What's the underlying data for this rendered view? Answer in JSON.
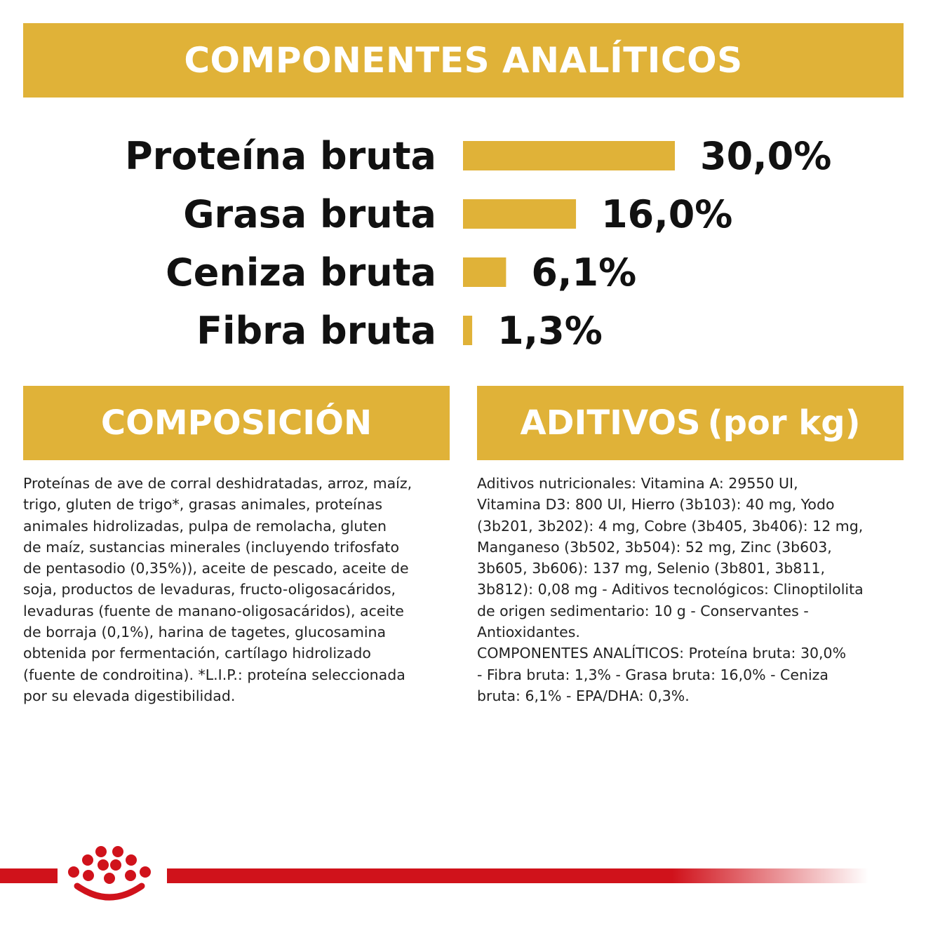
{
  "colors": {
    "accent": "#e0b238",
    "brand_red": "#d0121b",
    "text": "#111111"
  },
  "header": {
    "title": "COMPONENTES ANALÍTICOS"
  },
  "chart_data": {
    "type": "bar",
    "orientation": "horizontal",
    "categories": [
      "Proteína bruta",
      "Grasa bruta",
      "Ceniza bruta",
      "Fibra bruta"
    ],
    "values": [
      30.0,
      16.0,
      6.1,
      1.3
    ],
    "value_labels": [
      "30,0%",
      "16,0%",
      "6,1%",
      "1,3%"
    ],
    "unit": "%",
    "color": "#e0b238",
    "grid": false,
    "axes_visible": false
  },
  "composicion": {
    "title": "COMPOSICIÓN",
    "lines": [
      "Proteínas de ave de corral deshidratadas, arroz, maíz,",
      "trigo, gluten de trigo*, grasas animales, proteínas",
      "animales hidrolizadas, pulpa de remolacha, gluten",
      "de maíz, sustancias minerales (incluyendo trifosfato",
      "de pentasodio (0,35%)), aceite de pescado, aceite de",
      "soja, productos de levaduras, fructo-oligosacáridos,",
      "levaduras (fuente de manano-oligosacáridos), aceite",
      "de borraja (0,1%), harina de tagetes, glucosamina",
      "obtenida por fermentación, cartílago hidrolizado",
      "(fuente de condroitina). *L.I.P.: proteína seleccionada",
      "por su elevada digestibilidad."
    ]
  },
  "aditivos": {
    "title": "ADITIVOS",
    "subtitle": "(por kg)",
    "lines": [
      "Aditivos nutricionales: Vitamina A: 29550 UI,",
      "Vitamina D3: 800 UI, Hierro (3b103): 40 mg, Yodo",
      "(3b201, 3b202): 4 mg, Cobre (3b405, 3b406): 12 mg,",
      "Manganeso (3b502, 3b504): 52 mg, Zinc (3b603,",
      "3b605, 3b606): 137 mg, Selenio (3b801, 3b811,",
      "3b812): 0,08 mg - Aditivos tecnológicos: Clinoptilolita",
      "de origen sedimentario: 10 g - Conservantes -",
      "Antioxidantes.",
      "COMPONENTES ANALÍTICOS: Proteína bruta: 30,0%",
      "- Fibra bruta: 1,3% - Grasa bruta: 16,0% - Ceniza",
      "bruta: 6,1% - EPA/DHA: 0,3%."
    ]
  },
  "footer": {
    "logo_icon": "royal-canin-crown-icon"
  }
}
